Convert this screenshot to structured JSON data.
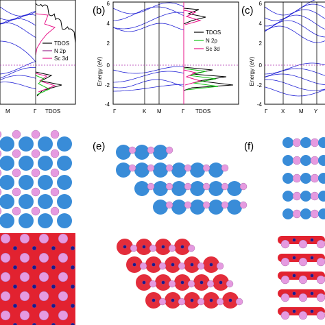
{
  "panels": {
    "a_right_partial": {
      "xticks": [
        "M",
        "Γ",
        "TDOS"
      ],
      "legend": [
        {
          "label": "TDOS",
          "color": "#000000"
        },
        {
          "label": "N 2p",
          "color": "#9b2a8c"
        },
        {
          "label": "Sc 3d",
          "color": "#e8168a"
        }
      ]
    },
    "b": {
      "label": "(b)",
      "ylabel": "Energy (eV)",
      "yticks": [
        "6",
        "4",
        "2",
        "0",
        "-2",
        "-4"
      ],
      "xticks": [
        "Γ",
        "K",
        "M",
        "Γ",
        "TDOS"
      ],
      "legend": [
        {
          "label": "TDOS",
          "color": "#000000"
        },
        {
          "label": "N 2p",
          "color": "#19c419"
        },
        {
          "label": "Sc 3d",
          "color": "#e8168a"
        }
      ]
    },
    "c": {
      "label": "(c)",
      "ylabel": "Energy (eV)",
      "yticks": [
        "6",
        "4",
        "2",
        "0",
        "-2",
        "-4"
      ],
      "xticks": [
        "Γ",
        "X",
        "M",
        "Y"
      ]
    },
    "e": {
      "label": "(e)"
    },
    "f": {
      "label": "(f)"
    }
  },
  "colors": {
    "band": "#2323d6",
    "fermi": "#b02cb0",
    "tdos": "#000000",
    "n2p": "#19c419",
    "sc3d": "#e8168a",
    "cloud_blue": "#2e86d6",
    "cloud_red": "#e22230",
    "atom_pink": "#e59ae0",
    "atom_navy": "#1a1a8a"
  }
}
